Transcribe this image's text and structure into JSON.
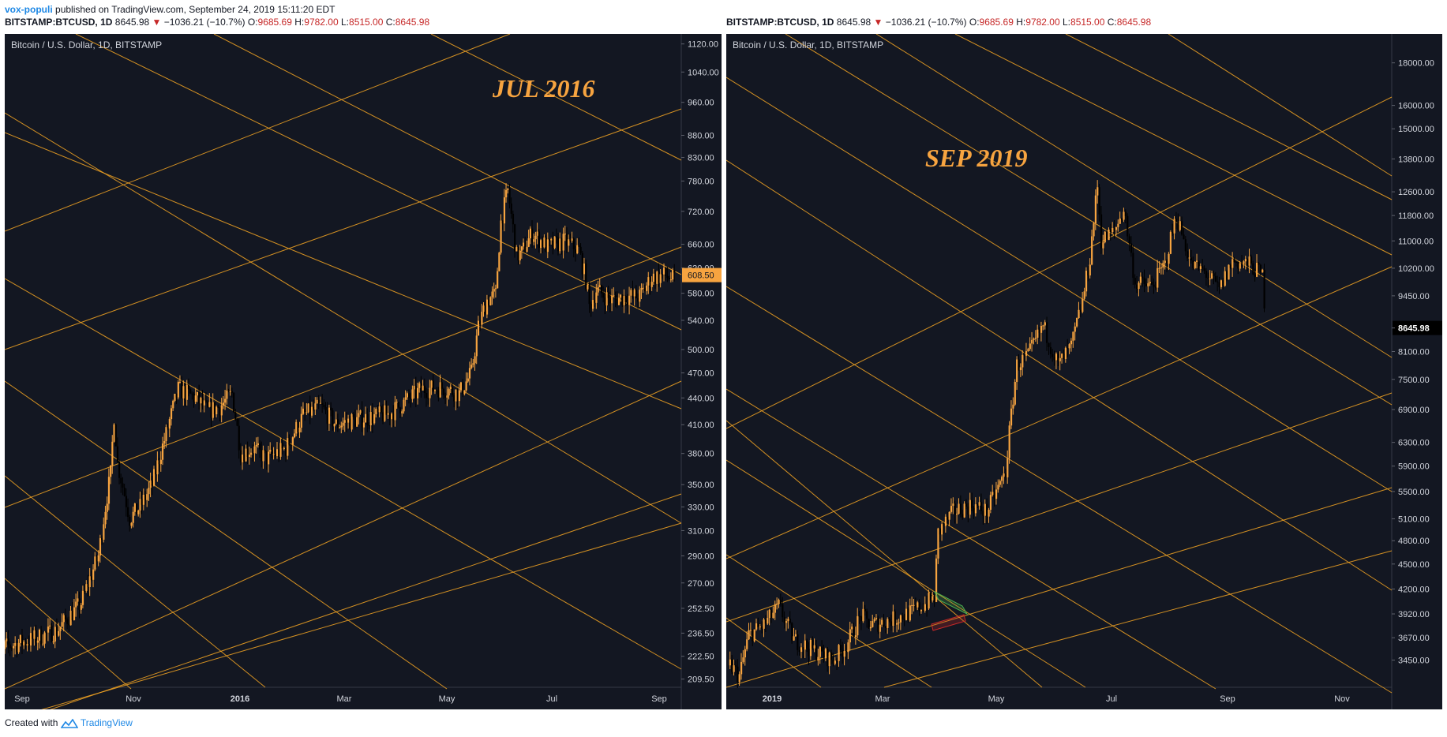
{
  "header": {
    "author": "vox-populi",
    "published_text": "published on TradingView.com, September 24, 2019 15:11:20 EDT"
  },
  "footer": {
    "created_with": "Created with",
    "brand": "TradingView"
  },
  "colors": {
    "background": "#131722",
    "candle": "#f7a440",
    "trendline": "#f5a623",
    "label_bg": "#f7a440",
    "down": "#c62828"
  },
  "chart_data": [
    {
      "type": "candlestick",
      "symbol_line": {
        "symbol": "BITSTAMP:BTCUSD, 1D",
        "price": "8645.98",
        "change": "−1036.21 (−10.7%)",
        "o_label": "O:",
        "o": "9685.69",
        "h_label": "H:",
        "h": "9782.00",
        "l_label": "L:",
        "l": "8515.00",
        "c_label": "C:",
        "c": "8645.98"
      },
      "series_name": "Bitcoin / U.S. Dollar, 1D, BITSTAMP",
      "annotation": "JUL 2016",
      "last_price_label": "608.50",
      "y_scale": "log",
      "ylim": [
        205,
        1150
      ],
      "y_ticks": [
        "1120.00",
        "1040.00",
        "960.00",
        "880.00",
        "830.00",
        "780.00",
        "720.00",
        "660.00",
        "620.00",
        "580.00",
        "540.00",
        "500.00",
        "470.00",
        "440.00",
        "410.00",
        "380.00",
        "350.00",
        "330.00",
        "310.00",
        "290.00",
        "270.00",
        "252.50",
        "236.50",
        "222.50",
        "209.50"
      ],
      "x_ticks": [
        "Sep",
        "Nov",
        "2016",
        "Mar",
        "May",
        "Jul",
        "Sep"
      ],
      "x_start": "2015-09-01",
      "x_end": "2016-09-25",
      "price_path": [
        [
          "2015-08-25",
          205
        ],
        [
          "2015-09-01",
          228
        ],
        [
          "2015-09-15",
          232
        ],
        [
          "2015-10-01",
          238
        ],
        [
          "2015-10-15",
          256
        ],
        [
          "2015-10-25",
          290
        ],
        [
          "2015-11-01",
          360
        ],
        [
          "2015-11-03",
          420
        ],
        [
          "2015-11-05",
          370
        ],
        [
          "2015-11-12",
          320
        ],
        [
          "2015-11-18",
          330
        ],
        [
          "2015-11-25",
          350
        ],
        [
          "2015-12-03",
          400
        ],
        [
          "2015-12-10",
          450
        ],
        [
          "2015-12-20",
          440
        ],
        [
          "2015-12-27",
          425
        ],
        [
          "2016-01-03",
          430
        ],
        [
          "2016-01-10",
          445
        ],
        [
          "2016-01-15",
          380
        ],
        [
          "2016-01-22",
          385
        ],
        [
          "2016-01-30",
          375
        ],
        [
          "2016-02-10",
          385
        ],
        [
          "2016-02-20",
          420
        ],
        [
          "2016-03-01",
          430
        ],
        [
          "2016-03-10",
          410
        ],
        [
          "2016-03-20",
          415
        ],
        [
          "2016-04-10",
          422
        ],
        [
          "2016-04-28",
          450
        ],
        [
          "2016-05-10",
          452
        ],
        [
          "2016-05-20",
          445
        ],
        [
          "2016-05-27",
          470
        ],
        [
          "2016-05-31",
          530
        ],
        [
          "2016-06-05",
          570
        ],
        [
          "2016-06-10",
          578
        ],
        [
          "2016-06-13",
          700
        ],
        [
          "2016-06-17",
          760
        ],
        [
          "2016-06-22",
          640
        ],
        [
          "2016-06-25",
          645
        ],
        [
          "2016-07-01",
          680
        ],
        [
          "2016-07-10",
          655
        ],
        [
          "2016-07-20",
          665
        ],
        [
          "2016-07-28",
          650
        ],
        [
          "2016-08-01",
          600
        ],
        [
          "2016-08-03",
          560
        ],
        [
          "2016-08-07",
          585
        ],
        [
          "2016-08-15",
          570
        ],
        [
          "2016-08-25",
          575
        ],
        [
          "2016-09-01",
          575
        ],
        [
          "2016-09-08",
          605
        ],
        [
          "2016-09-15",
          608
        ],
        [
          "2016-09-22",
          600
        ]
      ]
    },
    {
      "type": "candlestick",
      "symbol_line": {
        "symbol": "BITSTAMP:BTCUSD, 1D",
        "price": "8645.98",
        "change": "−1036.21 (−10.7%)",
        "o_label": "O:",
        "o": "9685.69",
        "h_label": "H:",
        "h": "9782.00",
        "l_label": "L:",
        "l": "8515.00",
        "c_label": "C:",
        "c": "8645.98"
      },
      "series_name": "Bitcoin / U.S. Dollar, 1D, BITSTAMP",
      "annotation": "SEP 2019",
      "last_price_label": "8645.98",
      "y_scale": "log",
      "ylim": [
        3200,
        19500
      ],
      "y_ticks": [
        "18000.00",
        "16000.00",
        "15000.00",
        "13800.00",
        "12600.00",
        "11800.00",
        "11000.00",
        "10200.00",
        "9450.00",
        "8645.98",
        "8100.00",
        "7500.00",
        "6900.00",
        "6300.00",
        "5900.00",
        "5500.00",
        "5100.00",
        "4800.00",
        "4500.00",
        "4200.00",
        "3920.00",
        "3670.00",
        "3450.00"
      ],
      "x_ticks": [
        "2019",
        "Mar",
        "May",
        "Jul",
        "Sep",
        "Nov"
      ],
      "x_start": "2018-12-10",
      "x_end": "2019-11-30",
      "price_path": [
        [
          "2018-12-12",
          3400
        ],
        [
          "2018-12-17",
          3300
        ],
        [
          "2018-12-22",
          3700
        ],
        [
          "2018-12-30",
          3800
        ],
        [
          "2019-01-07",
          4000
        ],
        [
          "2019-01-15",
          3650
        ],
        [
          "2019-01-25",
          3550
        ],
        [
          "2019-02-05",
          3450
        ],
        [
          "2019-02-12",
          3600
        ],
        [
          "2019-02-20",
          3900
        ],
        [
          "2019-02-25",
          3800
        ],
        [
          "2019-03-10",
          3870
        ],
        [
          "2019-03-20",
          3950
        ],
        [
          "2019-03-31",
          4100
        ],
        [
          "2019-04-02",
          4900
        ],
        [
          "2019-04-10",
          5200
        ],
        [
          "2019-04-20",
          5300
        ],
        [
          "2019-04-28",
          5200
        ],
        [
          "2019-05-08",
          5800
        ],
        [
          "2019-05-14",
          7800
        ],
        [
          "2019-05-20",
          8000
        ],
        [
          "2019-05-28",
          8700
        ],
        [
          "2019-06-05",
          7800
        ],
        [
          "2019-06-12",
          8200
        ],
        [
          "2019-06-18",
          9300
        ],
        [
          "2019-06-22",
          10500
        ],
        [
          "2019-06-26",
          12800
        ],
        [
          "2019-06-28",
          11000
        ],
        [
          "2019-07-05",
          11300
        ],
        [
          "2019-07-10",
          12000
        ],
        [
          "2019-07-16",
          9800
        ],
        [
          "2019-07-25",
          9700
        ],
        [
          "2019-08-01",
          10300
        ],
        [
          "2019-08-07",
          11800
        ],
        [
          "2019-08-15",
          10300
        ],
        [
          "2019-08-22",
          10100
        ],
        [
          "2019-08-30",
          9600
        ],
        [
          "2019-09-06",
          10400
        ],
        [
          "2019-09-15",
          10300
        ],
        [
          "2019-09-22",
          10000
        ],
        [
          "2019-09-24",
          8646
        ]
      ]
    }
  ]
}
